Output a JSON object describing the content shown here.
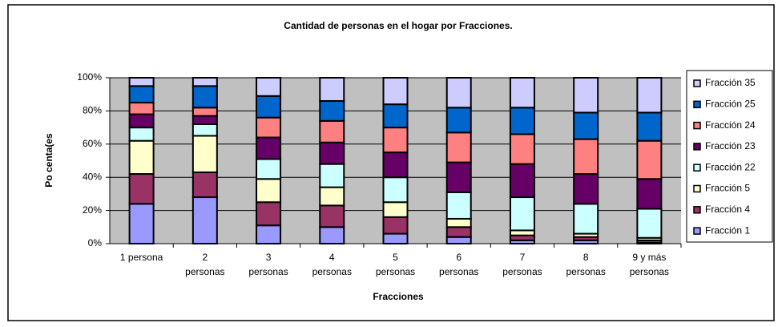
{
  "chart_data": {
    "type": "bar",
    "stacked": true,
    "title": "Cantidad de personas en el hogar por Fracciones.",
    "xlabel": "Fracciones",
    "ylabel": "Po centa(es",
    "categories": [
      "1 persona",
      "2 personas",
      "3 personas",
      "4 personas",
      "5 personas",
      "6 personas",
      "7 personas",
      "8 personas",
      "9 y más personas"
    ],
    "series": [
      {
        "name": "Fracción 1",
        "color": "#9999ff",
        "values": [
          24,
          28,
          11,
          10,
          6,
          4,
          2,
          2,
          0.5
        ]
      },
      {
        "name": "Fracción 4",
        "color": "#993366",
        "values": [
          18,
          15,
          14,
          13,
          10,
          6,
          3,
          2,
          1.5
        ]
      },
      {
        "name": "Fracción 5",
        "color": "#ffffcc",
        "values": [
          20,
          22,
          14,
          11,
          9,
          5,
          3,
          2,
          1.5
        ]
      },
      {
        "name": "Fracción 22",
        "color": "#ccffff",
        "values": [
          8,
          7,
          12,
          14,
          15,
          16,
          20,
          18,
          17.5
        ]
      },
      {
        "name": "Fracción 23",
        "color": "#660066",
        "values": [
          8,
          5,
          13,
          13,
          15,
          18,
          20,
          18,
          18
        ]
      },
      {
        "name": "Fracción 24",
        "color": "#ff8080",
        "values": [
          7,
          5,
          12,
          13,
          15,
          18,
          18,
          21,
          23
        ]
      },
      {
        "name": "Fracción 25",
        "color": "#0066cc",
        "values": [
          10,
          13,
          13,
          12,
          14,
          15,
          16,
          16,
          17
        ]
      },
      {
        "name": "Fracción 35",
        "color": "#ccccff",
        "values": [
          5,
          5,
          11,
          14,
          16,
          18,
          18,
          21,
          21
        ]
      }
    ],
    "ylim": [
      0,
      100
    ],
    "yticks": [
      {
        "value": 0,
        "label": "0%"
      },
      {
        "value": 20,
        "label": "20%"
      },
      {
        "value": 40,
        "label": "40%"
      },
      {
        "value": 60,
        "label": "60%"
      },
      {
        "value": 80,
        "label": "80%"
      },
      {
        "value": 100,
        "label": "100%"
      }
    ],
    "grid": true,
    "legend": "right"
  }
}
